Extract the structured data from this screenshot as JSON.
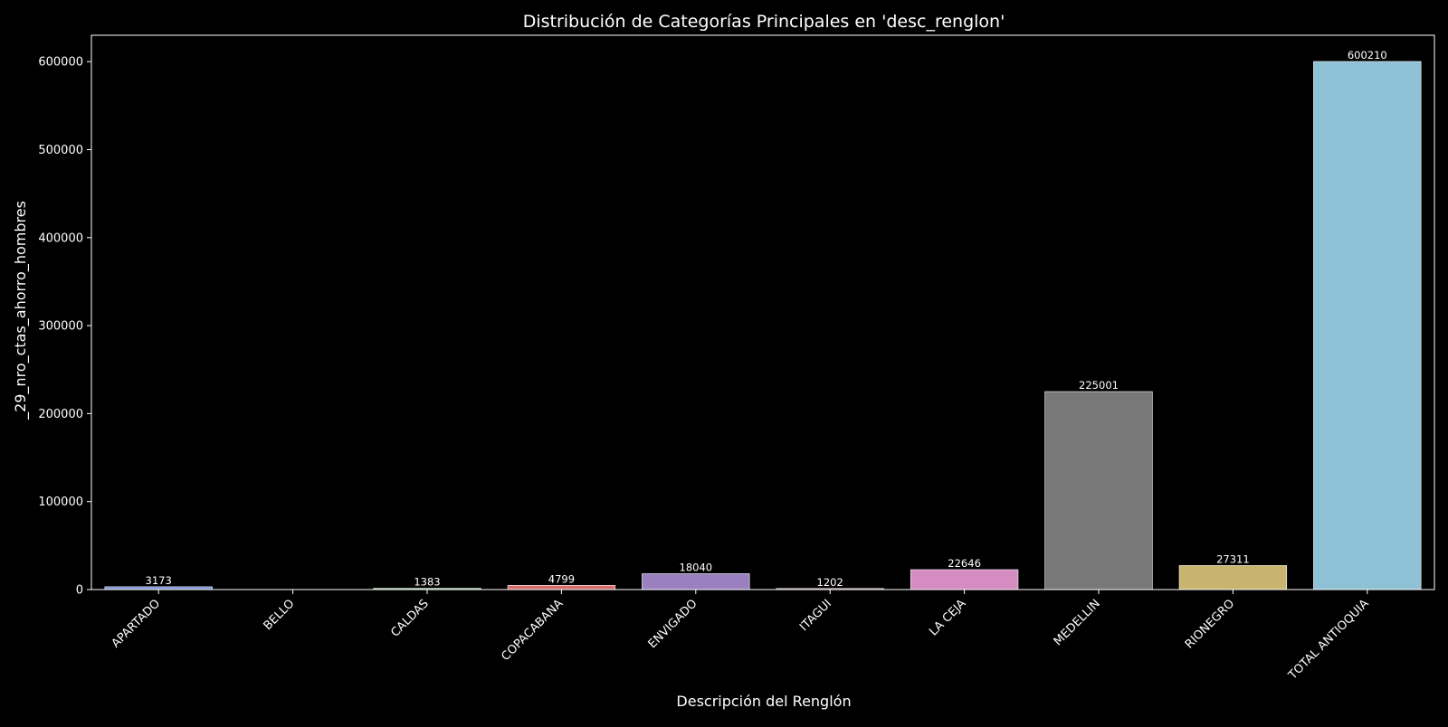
{
  "chart_data": {
    "type": "bar",
    "title": "Distribución de Categorías Principales en 'desc_renglon'",
    "xlabel": "Descripción del Renglón",
    "ylabel": "_29_nro_ctas_ahorro_hombres",
    "categories": [
      "APARTADO",
      "BELLO",
      "CALDAS",
      "COPACABANA",
      "ENVIGADO",
      "ITAGUI",
      "LA CEJA",
      "MEDELLIN",
      "RIONEGRO",
      "TOTAL ANTIOQUIA"
    ],
    "values": [
      3173,
      null,
      1383,
      4799,
      18040,
      1202,
      22646,
      225001,
      27311,
      600210
    ],
    "value_labels": [
      "3173",
      "",
      "1383",
      "4799",
      "18040",
      "1202",
      "22646",
      "225001",
      "27311",
      "600210"
    ],
    "colors": [
      "#7b93d6",
      "#d49a66",
      "#8fd68f",
      "#d46a6a",
      "#9a80bf",
      "#a57a6a",
      "#d58cc0",
      "#787878",
      "#c8b46e",
      "#8fc1d6"
    ],
    "yticks": [
      0,
      100000,
      200000,
      300000,
      400000,
      500000,
      600000
    ],
    "ylim": [
      0,
      630000
    ],
    "grid": false,
    "legend": "none"
  }
}
